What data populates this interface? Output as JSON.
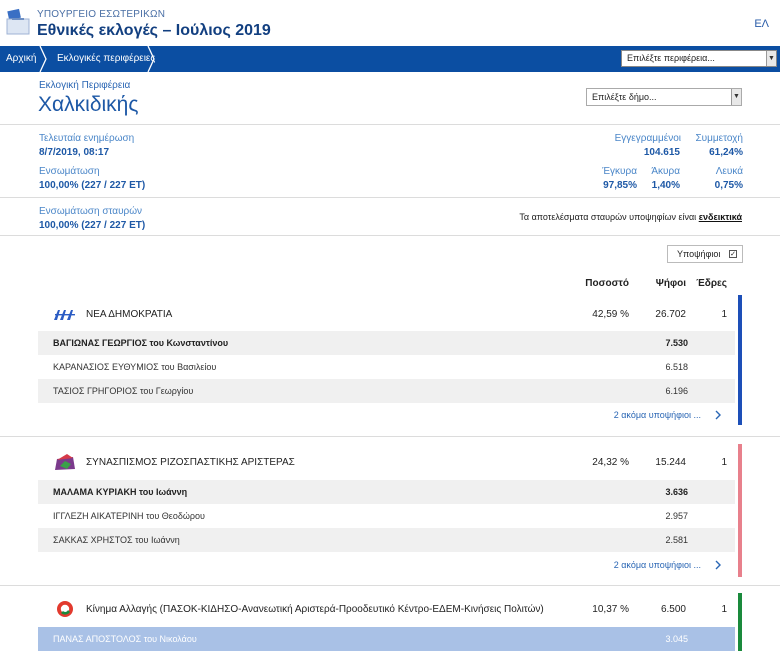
{
  "header": {
    "ministry": "ΥΠΟΥΡΓΕΙΟ ΕΣΩΤΕΡΙΚΩΝ",
    "title": "Εθνικές εκλογές – Ιούλιος 2019",
    "language": "ΕΛ"
  },
  "nav": {
    "breadcrumbs": [
      "Αρχική",
      "Εκλογικές περιφέρειες"
    ],
    "region_select": "Επιλέξτε περιφέρεια..."
  },
  "region": {
    "label": "Εκλογική Περιφέρεια",
    "name": "Χαλκιδικής",
    "municipality_select": "Επιλέξτε δήμο..."
  },
  "stats": {
    "last_update_label": "Τελευταία ενημέρωση",
    "last_update_value": "8/7/2019, 08:17",
    "integration_label": "Ενσωμάτωση",
    "integration_value": "100,00% (227 / 227 ΕΤ)",
    "registered_label": "Εγγεγραμμένοι",
    "registered_value": "104.615",
    "turnout_label": "Συμμετοχή",
    "turnout_value": "61,24%",
    "valid_label": "Έγκυρα",
    "valid_value": "97,85%",
    "invalid_label": "Άκυρα",
    "invalid_value": "1,40%",
    "blank_label": "Λευκά",
    "blank_value": "0,75%",
    "cross_label": "Ενσωμάτωση σταυρών",
    "cross_value": "100,00% (227 / 227 ΕΤ)",
    "note_text": "Τα αποτελέσματα σταυρών υποψηφίων είναι",
    "note_link": "ενδεικτικά"
  },
  "results": {
    "candidates_toggle": "Υποψήφιοι",
    "checkbox_mark": "✓",
    "col_percent": "Ποσοστό",
    "col_votes": "Ψήφοι",
    "col_seats": "Έδρες",
    "parties": [
      {
        "name": "ΝΕΑ ΔΗΜΟΚΡΑΤΙΑ",
        "percent": "42,59 %",
        "votes": "26.702",
        "seats": "1",
        "color": "#1d4fb8",
        "candidates": [
          {
            "name": "ΒΑΓΙΩΝΑΣ ΓΕΩΡΓΙΟΣ του Κωνσταντίνου",
            "votes": "7.530"
          },
          {
            "name": "ΚΑΡΑΝΑΣΙΟΣ ΕΥΘΥΜΙΟΣ του Βασιλείου",
            "votes": "6.518"
          },
          {
            "name": "ΤΑΣΙΟΣ ΓΡΗΓΟΡΙΟΣ του Γεωργίου",
            "votes": "6.196"
          }
        ],
        "more": "2 ακόμα υποψήφιοι ..."
      },
      {
        "name": "ΣΥΝΑΣΠΙΣΜΟΣ ΡΙΖΟΣΠΑΣΤΙΚΗΣ ΑΡΙΣΤΕΡΑΣ",
        "percent": "24,32 %",
        "votes": "15.244",
        "seats": "1",
        "color": "#e8808c",
        "candidates": [
          {
            "name": "ΜΑΛΑΜΑ ΚΥΡΙΑΚΗ του Ιωάννη",
            "votes": "3.636"
          },
          {
            "name": "ΙΓΓΛΕΖΗ ΑΙΚΑΤΕΡΙΝΗ του Θεοδώρου",
            "votes": "2.957"
          },
          {
            "name": "ΣΑΚΚΑΣ ΧΡΗΣΤΟΣ του Ιωάννη",
            "votes": "2.581"
          }
        ],
        "more": "2 ακόμα υποψήφιοι ..."
      },
      {
        "name": "Κίνημα Αλλαγής (ΠΑΣΟΚ-ΚΙΔΗΣΟ-Ανανεωτική Αριστερά-Προοδευτικό Κέντρο-ΕΔΕΜ-Κινήσεις Πολιτών)",
        "percent": "10,37 %",
        "votes": "6.500",
        "seats": "1",
        "color": "#1a8a3c",
        "candidates": [
          {
            "name": "ΠΑΝΑΣ ΑΠΟΣΤΟΛΟΣ του Νικολάου",
            "votes": "3.045"
          }
        ]
      }
    ]
  }
}
